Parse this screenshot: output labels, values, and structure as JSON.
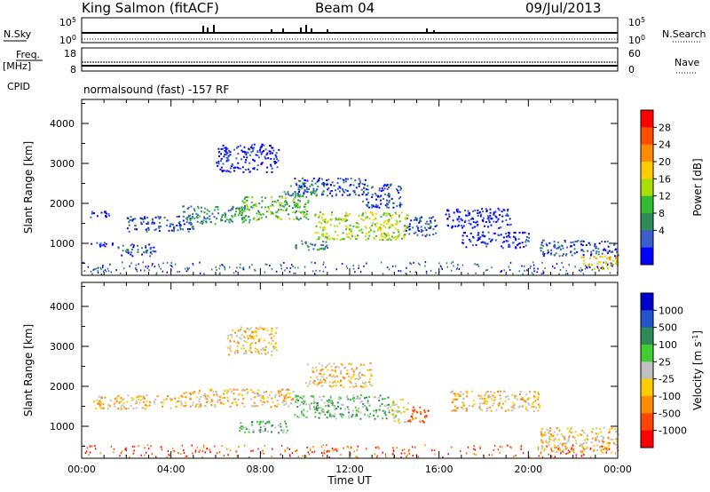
{
  "header": {
    "station": "King Salmon (fitACF)",
    "beam": "Beam 04",
    "date": "09/Jul/2013"
  },
  "strip_labels": {
    "nsky": "N.Sky",
    "freq_line1": "Freq.",
    "freq_line2": "[MHz]",
    "cpid": "CPID",
    "nsearch": "N.Search",
    "nave": "Nave",
    "program": "normalsound (fast) -157 RF"
  },
  "strip_ticks": {
    "nsky": [
      "10^5",
      "10^0"
    ],
    "freq": [
      "18",
      "8"
    ],
    "nsearch": [
      "10^5",
      "10^0"
    ],
    "nave": [
      "60",
      "0"
    ]
  },
  "chart_data": [
    {
      "type": "heatmap",
      "name": "power-panel",
      "ylabel": "Slant Range [km]",
      "xlabel": "",
      "ylim": [
        200,
        4600
      ],
      "yticks": [
        1000,
        2000,
        3000,
        4000
      ],
      "xlim": [
        0,
        24
      ],
      "colorbar": {
        "label": "Power [dB]",
        "ticks": [
          "28",
          "24",
          "20",
          "16",
          "12",
          "8",
          "4"
        ],
        "colors": [
          "#ff0000",
          "#ff4d00",
          "#ff8c00",
          "#ffcc00",
          "#aadd00",
          "#33bb33",
          "#2e8b57",
          "#3a5fcd",
          "#0000ff"
        ]
      },
      "scatter_regions": [
        {
          "t0": 0.2,
          "t1": 1.2,
          "r0": 1650,
          "r1": 1850,
          "level": 1
        },
        {
          "t0": 0.4,
          "t1": 1.4,
          "r0": 900,
          "r1": 1050,
          "level": 1
        },
        {
          "t0": 1.6,
          "t1": 3.4,
          "r0": 700,
          "r1": 1000,
          "level": 2
        },
        {
          "t0": 2.0,
          "t1": 5.0,
          "r0": 1300,
          "r1": 1700,
          "level": 2
        },
        {
          "t0": 4.5,
          "t1": 7.5,
          "r0": 1500,
          "r1": 1950,
          "level": 3
        },
        {
          "t0": 7.0,
          "t1": 10.2,
          "r0": 1600,
          "r1": 2200,
          "level": 4
        },
        {
          "t0": 9.0,
          "t1": 10.8,
          "r0": 2200,
          "r1": 2500,
          "level": 3
        },
        {
          "t0": 9.5,
          "t1": 12.8,
          "r0": 2200,
          "r1": 2650,
          "level": 2
        },
        {
          "t0": 10.4,
          "t1": 14.6,
          "r0": 1100,
          "r1": 1800,
          "level": 5
        },
        {
          "t0": 9.4,
          "t1": 11.0,
          "r0": 850,
          "r1": 1100,
          "level": 3
        },
        {
          "t0": 12.5,
          "t1": 14.3,
          "r0": 1900,
          "r1": 2500,
          "level": 2
        },
        {
          "t0": 14.4,
          "t1": 15.9,
          "r0": 1200,
          "r1": 1700,
          "level": 2
        },
        {
          "t0": 6.0,
          "t1": 8.8,
          "r0": 2800,
          "r1": 3500,
          "level": 1
        },
        {
          "t0": 16.2,
          "t1": 19.2,
          "r0": 1400,
          "r1": 1900,
          "level": 1
        },
        {
          "t0": 17.0,
          "t1": 20.0,
          "r0": 900,
          "r1": 1300,
          "level": 1
        },
        {
          "t0": 20.5,
          "t1": 24.0,
          "r0": 700,
          "r1": 1100,
          "level": 2
        },
        {
          "t0": 22.3,
          "t1": 24.0,
          "r0": 350,
          "r1": 700,
          "level": 6
        }
      ]
    },
    {
      "type": "heatmap",
      "name": "velocity-panel",
      "ylabel": "Slant Range [km]",
      "xlabel": "Time UT",
      "ylim": [
        200,
        4600
      ],
      "yticks": [
        1000,
        2000,
        3000,
        4000
      ],
      "xlim": [
        0,
        24
      ],
      "xticks": [
        "00:00",
        "04:00",
        "08:00",
        "12:00",
        "16:00",
        "20:00",
        "00:00"
      ],
      "colorbar": {
        "label": "Velocity [m s^-1]",
        "ticks": [
          "1000",
          "500",
          "100",
          "25",
          "-25",
          "-100",
          "-500",
          "-1000"
        ],
        "colors": [
          "#0000cc",
          "#2255cc",
          "#2e8b57",
          "#44cc33",
          "#c0c0c0",
          "#ffcc00",
          "#ff8c00",
          "#ff4500",
          "#ff0000"
        ]
      },
      "scatter_regions": [
        {
          "t0": 0.5,
          "t1": 4.5,
          "r0": 1450,
          "r1": 1800,
          "level": 4
        },
        {
          "t0": 4.5,
          "t1": 9.5,
          "r0": 1500,
          "r1": 1950,
          "level": 4
        },
        {
          "t0": 9.5,
          "t1": 13.8,
          "r0": 1200,
          "r1": 1800,
          "level": 6
        },
        {
          "t0": 7.0,
          "t1": 9.2,
          "r0": 850,
          "r1": 1150,
          "level": 6
        },
        {
          "t0": 13.8,
          "t1": 14.6,
          "r0": 1100,
          "r1": 1700,
          "level": 5
        },
        {
          "t0": 14.6,
          "t1": 15.5,
          "r0": 1100,
          "r1": 1500,
          "level": 2
        },
        {
          "t0": 10.0,
          "t1": 13.0,
          "r0": 2000,
          "r1": 2600,
          "level": 4
        },
        {
          "t0": 6.5,
          "t1": 8.7,
          "r0": 2800,
          "r1": 3500,
          "level": 4
        },
        {
          "t0": 16.5,
          "t1": 20.5,
          "r0": 1400,
          "r1": 1900,
          "level": 4
        },
        {
          "t0": 20.5,
          "t1": 24.0,
          "r0": 350,
          "r1": 1000,
          "level": 4
        }
      ]
    }
  ]
}
